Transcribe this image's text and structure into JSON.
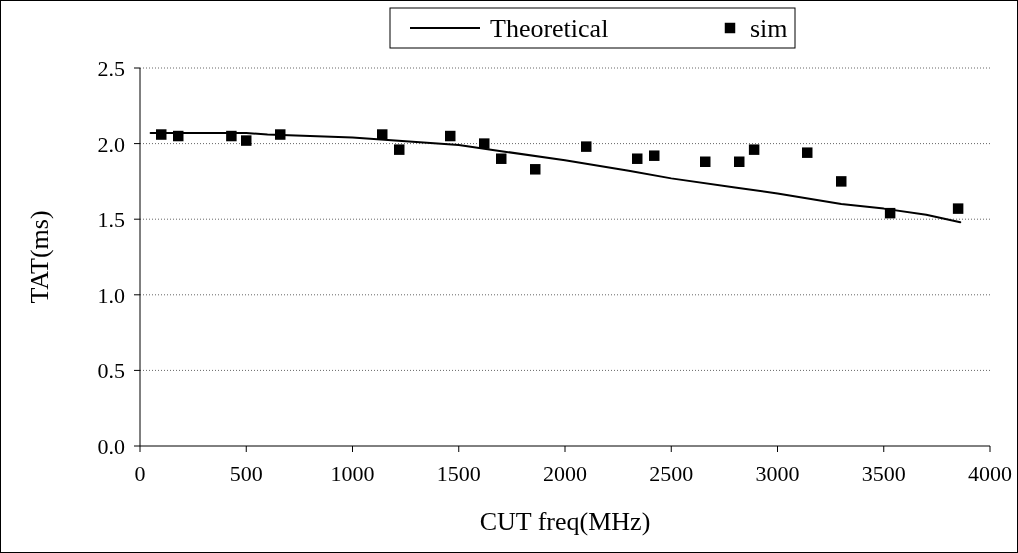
{
  "chart_data": {
    "type": "line",
    "xlabel": "CUT freq(MHz)",
    "ylabel": "TAT(ms)",
    "xlim": [
      0,
      4000
    ],
    "xticks": [
      0,
      500,
      1000,
      1500,
      2000,
      2500,
      3000,
      3500,
      4000
    ],
    "ylim": [
      0,
      2.5
    ],
    "yticks": [
      {
        "value": 0,
        "label": "0.0"
      },
      {
        "value": 0.5,
        "label": "0.5"
      },
      {
        "value": 1,
        "label": "1.0"
      },
      {
        "value": 1.5,
        "label": "1.5"
      },
      {
        "value": 2,
        "label": "2.0"
      },
      {
        "value": 2.5,
        "label": "2.5"
      }
    ],
    "grid": "y",
    "legend": "top",
    "series": [
      {
        "name": "Theoretical",
        "color": "#000000",
        "marker": "none",
        "line_style": "solid",
        "x": [
          50,
          250,
          500,
          600,
          800,
          1000,
          1200,
          1500,
          1700,
          2000,
          2300,
          2500,
          2800,
          3000,
          3300,
          3500,
          3700,
          3860
        ],
        "values": [
          2.07,
          2.07,
          2.07,
          2.06,
          2.05,
          2.04,
          2.02,
          1.99,
          1.95,
          1.89,
          1.82,
          1.77,
          1.71,
          1.67,
          1.6,
          1.57,
          1.53,
          1.48
        ]
      },
      {
        "name": "sim",
        "type": "scatter",
        "color": "#000000",
        "marker": "square",
        "x": [
          100,
          180,
          430,
          500,
          660,
          1140,
          1220,
          1460,
          1620,
          1700,
          1860,
          2100,
          2340,
          2420,
          2660,
          2820,
          2890,
          3140,
          3300,
          3530,
          3850
        ],
        "values": [
          2.06,
          2.05,
          2.05,
          2.02,
          2.06,
          2.06,
          1.96,
          2.05,
          2.0,
          1.9,
          1.83,
          1.98,
          1.9,
          1.92,
          1.88,
          1.88,
          1.96,
          1.94,
          1.75,
          1.54,
          1.57
        ]
      }
    ]
  }
}
